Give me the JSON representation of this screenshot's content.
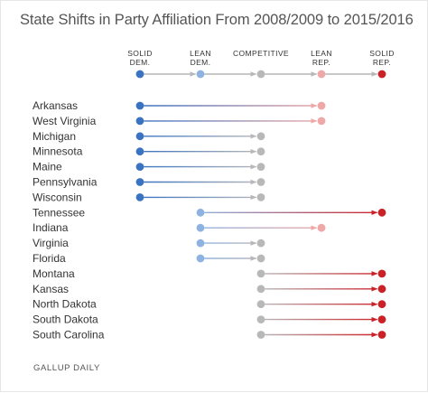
{
  "chart_data": {
    "type": "arrow-shift",
    "title": "State Shifts in Party Affiliation From 2008/2009 to 2015/2016",
    "scale": [
      {
        "key": "solid_dem",
        "lines": [
          "SOLID",
          "DEM."
        ]
      },
      {
        "key": "lean_dem",
        "lines": [
          "LEAN",
          "DEM."
        ]
      },
      {
        "key": "competitive",
        "lines": [
          "COMPETITIVE"
        ]
      },
      {
        "key": "lean_rep",
        "lines": [
          "LEAN",
          "REP."
        ]
      },
      {
        "key": "solid_rep",
        "lines": [
          "SOLID",
          "REP."
        ]
      }
    ],
    "states": [
      {
        "name": "Arkansas",
        "from": "solid_dem",
        "to": "lean_rep"
      },
      {
        "name": "West Virginia",
        "from": "solid_dem",
        "to": "lean_rep"
      },
      {
        "name": "Michigan",
        "from": "solid_dem",
        "to": "competitive"
      },
      {
        "name": "Minnesota",
        "from": "solid_dem",
        "to": "competitive"
      },
      {
        "name": "Maine",
        "from": "solid_dem",
        "to": "competitive"
      },
      {
        "name": "Pennsylvania",
        "from": "solid_dem",
        "to": "competitive"
      },
      {
        "name": "Wisconsin",
        "from": "solid_dem",
        "to": "competitive"
      },
      {
        "name": "Tennessee",
        "from": "lean_dem",
        "to": "solid_rep"
      },
      {
        "name": "Indiana",
        "from": "lean_dem",
        "to": "lean_rep"
      },
      {
        "name": "Virginia",
        "from": "lean_dem",
        "to": "competitive"
      },
      {
        "name": "Florida",
        "from": "lean_dem",
        "to": "competitive"
      },
      {
        "name": "Montana",
        "from": "competitive",
        "to": "solid_rep"
      },
      {
        "name": "Kansas",
        "from": "competitive",
        "to": "solid_rep"
      },
      {
        "name": "North Dakota",
        "from": "competitive",
        "to": "solid_rep"
      },
      {
        "name": "South Dakota",
        "from": "competitive",
        "to": "solid_rep"
      },
      {
        "name": "South Carolina",
        "from": "competitive",
        "to": "solid_rep"
      }
    ],
    "colors": {
      "solid_dem": "#3a73c1",
      "lean_dem": "#8fb3e0",
      "competitive": "#b8b8b8",
      "lean_rep": "#eea8a8",
      "solid_rep": "#cc2027"
    },
    "source": "GALLUP DAILY"
  }
}
